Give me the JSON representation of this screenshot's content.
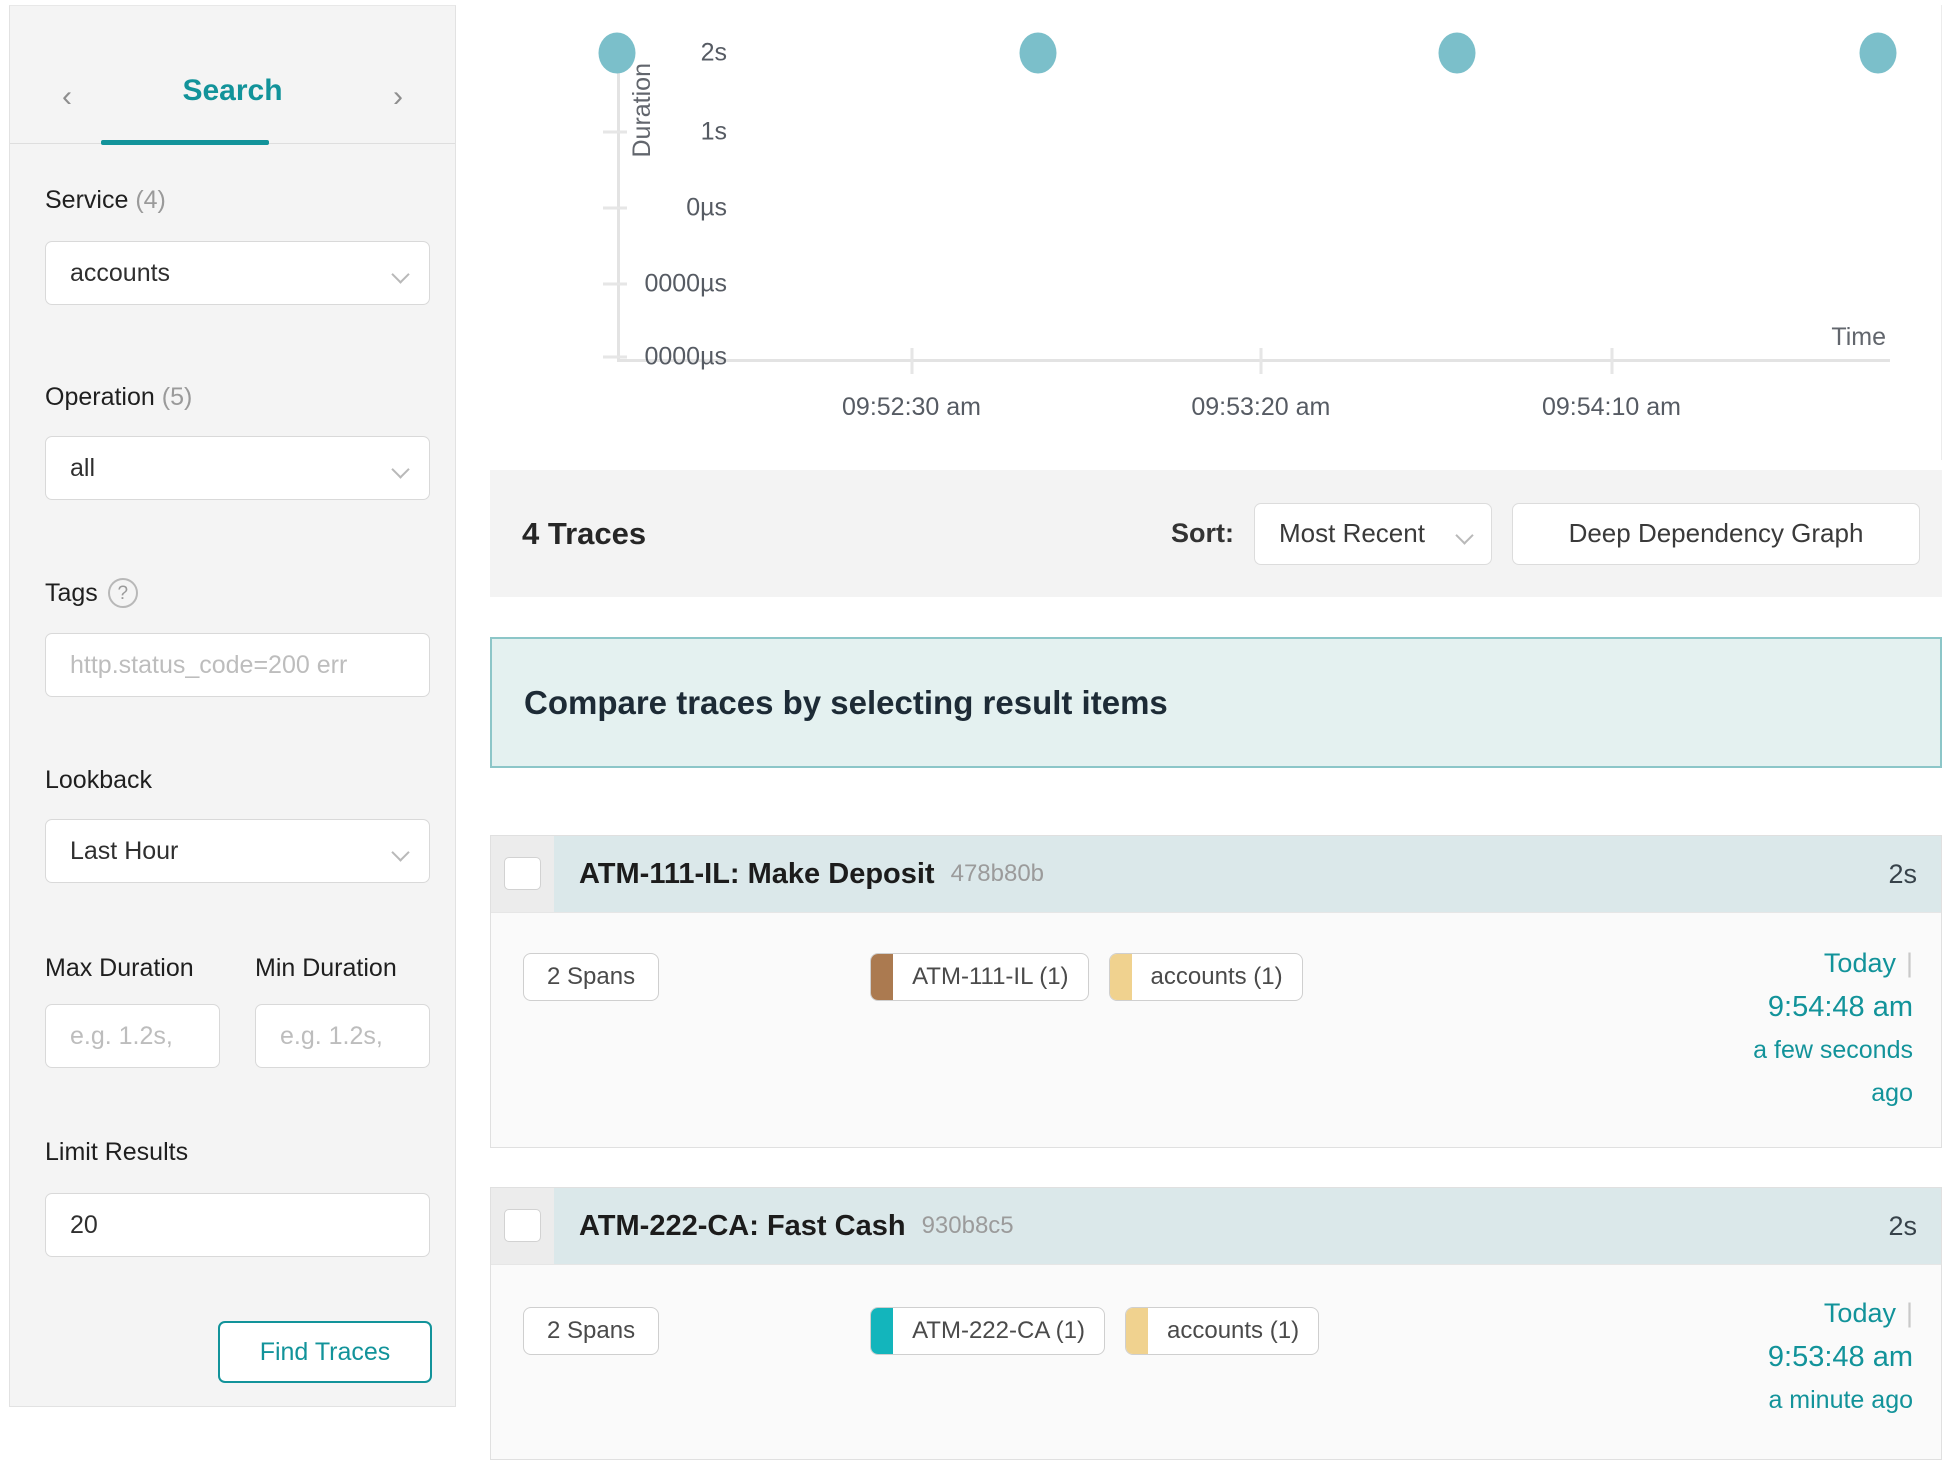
{
  "icons": {
    "prev": "‹",
    "next": "›",
    "help": "?"
  },
  "sidebar": {
    "title": "Search",
    "service": {
      "label": "Service",
      "count": "(4)",
      "value": "accounts"
    },
    "operation": {
      "label": "Operation",
      "count": "(5)",
      "value": "all"
    },
    "tags": {
      "label": "Tags",
      "placeholder": "http.status_code=200 err"
    },
    "lookback": {
      "label": "Lookback",
      "value": "Last Hour"
    },
    "max_duration": {
      "label": "Max Duration",
      "placeholder": "e.g. 1.2s,"
    },
    "min_duration": {
      "label": "Min Duration",
      "placeholder": "e.g. 1.2s,"
    },
    "limit": {
      "label": "Limit Results",
      "value": "20"
    },
    "find_button": "Find Traces"
  },
  "chart_data": {
    "type": "scatter",
    "title": "",
    "xlabel": "Time",
    "ylabel": "Duration",
    "dot_color": "#7bbfca",
    "grid": false,
    "y_ticks": [
      {
        "label": "2s",
        "pct": 5.6
      },
      {
        "label": "1s",
        "pct": 29.7
      },
      {
        "label": "0µs",
        "pct": 53.1
      },
      {
        "label": "0000µs",
        "pct": 76.6
      },
      {
        "label": "0000µs",
        "pct": 99.1
      }
    ],
    "x_ticks": [
      {
        "label": "09:52:30 am",
        "pct": 23.1
      },
      {
        "label": "09:53:20 am",
        "pct": 50.5
      },
      {
        "label": "09:54:10 am",
        "pct": 78.0
      }
    ],
    "points": [
      {
        "time": "09:51:48 am",
        "duration": "2s",
        "x_pct": 0,
        "y_pct": 5.6
      },
      {
        "time": "09:52:48 am",
        "duration": "2s",
        "x_pct": 33.0,
        "y_pct": 5.6
      },
      {
        "time": "09:53:48 am",
        "duration": "2s",
        "x_pct": 65.9,
        "y_pct": 5.6
      },
      {
        "time": "09:54:48 am",
        "duration": "2s",
        "x_pct": 98.9,
        "y_pct": 5.6
      }
    ]
  },
  "results_bar": {
    "count_label": "4 Traces",
    "sort_label": "Sort:",
    "sort_value": "Most Recent",
    "ddg_button": "Deep Dependency Graph"
  },
  "banner": {
    "text": "Compare traces by selecting result items"
  },
  "traces": [
    {
      "title": "ATM-111-IL: Make Deposit",
      "trace_id": "478b80b",
      "duration": "2s",
      "spans_badge": "2 Spans",
      "services": [
        {
          "name": "ATM-111-IL (1)",
          "color": "#ab7a50"
        },
        {
          "name": "accounts (1)",
          "color": "#f0d28f"
        }
      ],
      "date": "Today",
      "date_separator": "|",
      "time": "9:54:48 am",
      "relative": "a few seconds ago"
    },
    {
      "title": "ATM-222-CA: Fast Cash",
      "trace_id": "930b8c5",
      "duration": "2s",
      "spans_badge": "2 Spans",
      "services": [
        {
          "name": "ATM-222-CA (1)",
          "color": "#13b5bc"
        },
        {
          "name": "accounts (1)",
          "color": "#f0d28f"
        }
      ],
      "date": "Today",
      "date_separator": "|",
      "time": "9:53:48 am",
      "relative": "a minute ago"
    }
  ]
}
